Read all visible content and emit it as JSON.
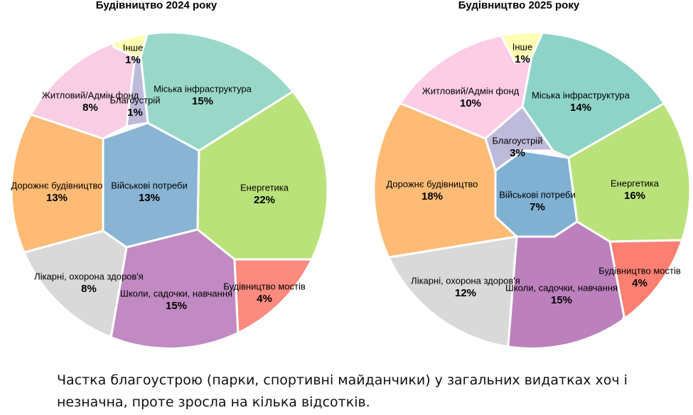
{
  "chart_data": [
    {
      "type": "voronoi-treemap",
      "title": "Будівництво 2024 року",
      "categories": [
        "Військові потреби",
        "Енергетика",
        "Міська інфраструктура",
        "Дорожнє будівництво",
        "Школи, садочки, навчання",
        "Лікарні, охорона здоров'я",
        "Житловий/Адмін фонд",
        "Будівництво мостів",
        "Благоустрій",
        "Інше"
      ],
      "values": [
        13,
        22,
        15,
        13,
        15,
        8,
        8,
        4,
        1,
        1
      ],
      "value_labels": [
        "13%",
        "22%",
        "15%",
        "13%",
        "15%",
        "8%",
        "8%",
        "4%",
        "1%",
        "1%"
      ],
      "colors": [
        "#8ab4d4",
        "#bae27a",
        "#99d8c9",
        "#fdbb75",
        "#c18ac2",
        "#d9d9d9",
        "#f9cee5",
        "#fb8a7f",
        "#bebada",
        "#ffffb3"
      ]
    },
    {
      "type": "voronoi-treemap",
      "title": "Будівництво 2025 року",
      "categories": [
        "Військові потреби",
        "Енергетика",
        "Міська інфраструктура",
        "Дорожнє будівництво",
        "Школи, садочки, навчання",
        "Лікарні, охорона здоров'я",
        "Житловий/Адмін фонд",
        "Будівництво мостів",
        "Благоустрій",
        "Інше"
      ],
      "values": [
        7,
        16,
        14,
        18,
        15,
        12,
        10,
        4,
        3,
        1
      ],
      "value_labels": [
        "7%",
        "16%",
        "14%",
        "18%",
        "15%",
        "12%",
        "10%",
        "4%",
        "3%",
        "1%"
      ],
      "colors": [
        "#80b1d3",
        "#bae27a",
        "#8dd3c7",
        "#fdbb75",
        "#bc80bd",
        "#d9d9d9",
        "#fccde5",
        "#fb8072",
        "#bebada",
        "#ffffb3"
      ]
    }
  ],
  "caption": "Частка благоустрою (парки, спортивні майданчики) у загальних видатках хоч і незначна, проте зросла на кілька відсотків."
}
